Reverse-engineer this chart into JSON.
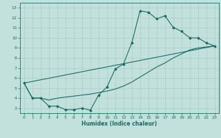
{
  "xlabel": "Humidex (Indice chaleur)",
  "background_color": "#c2e0dc",
  "grid_color": "#a8cfc8",
  "line_color": "#1a6b60",
  "xlim": [
    -0.5,
    23.5
  ],
  "ylim": [
    2.5,
    13.5
  ],
  "xticks": [
    0,
    1,
    2,
    3,
    4,
    5,
    6,
    7,
    8,
    9,
    10,
    11,
    12,
    13,
    14,
    15,
    16,
    17,
    18,
    19,
    20,
    21,
    22,
    23
  ],
  "yticks": [
    3,
    4,
    5,
    6,
    7,
    8,
    9,
    10,
    11,
    12,
    13
  ],
  "line1_x": [
    0,
    1,
    2,
    3,
    4,
    5,
    6,
    7,
    8,
    9,
    10,
    11,
    12,
    13,
    14,
    15,
    16,
    17,
    18,
    19,
    20,
    21,
    22,
    23
  ],
  "line1_y": [
    5.5,
    4.0,
    4.0,
    3.2,
    3.2,
    2.85,
    2.85,
    3.0,
    2.8,
    4.3,
    5.1,
    6.9,
    7.4,
    9.5,
    12.7,
    12.55,
    11.9,
    12.2,
    11.05,
    10.65,
    10.0,
    10.0,
    9.5,
    9.2
  ],
  "line2_x": [
    0,
    1,
    2,
    3,
    4,
    5,
    6,
    7,
    8,
    9,
    10,
    11,
    12,
    13,
    14,
    15,
    16,
    17,
    18,
    19,
    20,
    21,
    22,
    23
  ],
  "line2_y": [
    5.5,
    4.0,
    4.0,
    3.8,
    4.0,
    4.1,
    4.2,
    4.3,
    4.4,
    4.55,
    4.7,
    4.9,
    5.2,
    5.6,
    6.1,
    6.6,
    7.1,
    7.5,
    8.0,
    8.4,
    8.8,
    9.0,
    9.1,
    9.2
  ],
  "line3_x": [
    0,
    23
  ],
  "line3_y": [
    5.5,
    9.2
  ]
}
